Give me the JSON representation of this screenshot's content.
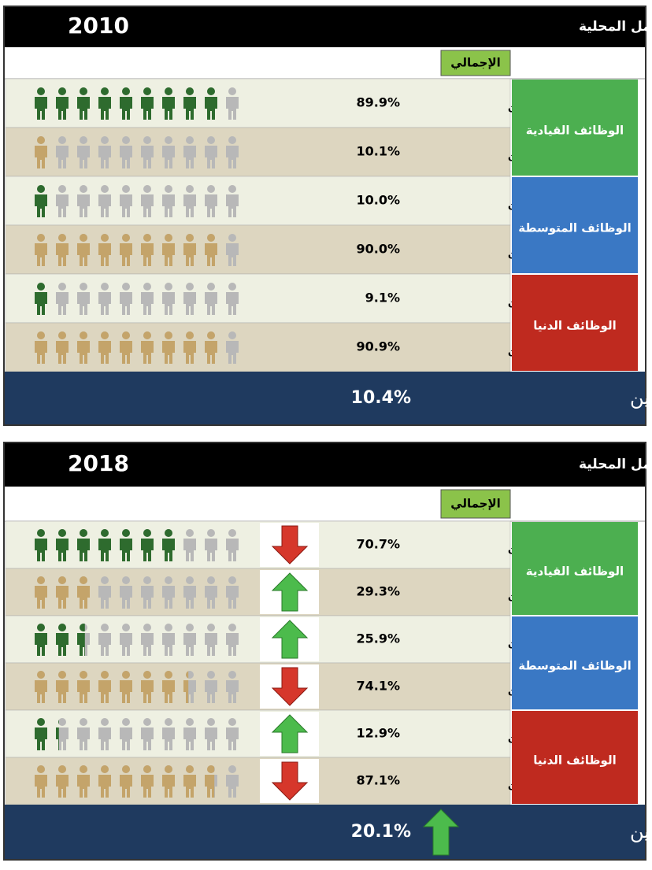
{
  "panels": [
    {
      "title": "التوزيع النسبي للعمالة السعودية والوافدة حسب الوظائف في سوق العمل المحلية",
      "year": "2010",
      "total_header": "الإجمالي",
      "groups": [
        {
          "name": "الوظائف القيادية",
          "color": "#4caf50",
          "rows": [
            {
              "label": "سعوديون",
              "value": 89.9,
              "value_label": "89.9%",
              "color": "#2e6b2e"
            },
            {
              "label": "وافدون",
              "value": 10.1,
              "value_label": "10.1%",
              "color": "#c4a46a"
            }
          ]
        },
        {
          "name": "الوظائف المتوسطة",
          "color": "#3a78c4",
          "rows": [
            {
              "label": "سعوديون",
              "value": 10.0,
              "value_label": "10.0%",
              "color": "#2e6b2e"
            },
            {
              "label": "وافدون",
              "value": 90.0,
              "value_label": "90.0%",
              "color": "#c4a46a"
            }
          ]
        },
        {
          "name": "الوظائف الدنيا",
          "color": "#bf2a1f",
          "rows": [
            {
              "label": "سعوديون",
              "value": 9.1,
              "value_label": "9.1%",
              "color": "#2e6b2e"
            },
            {
              "label": "وافدون",
              "value": 90.9,
              "value_label": "90.9%",
              "color": "#c4a46a"
            }
          ]
        }
      ],
      "rate_label": "معدل التوطين",
      "rate": {
        "value": 10.4,
        "label": "10.4%"
      }
    },
    {
      "title": "التوزيع النسبي للعمالة السعودية والوافدة حسب الوظائف في سوق العمل المحلية",
      "year": "2018",
      "total_header": "الإجمالي",
      "groups": [
        {
          "name": "الوظائف القيادية",
          "color": "#4caf50",
          "rows": [
            {
              "label": "سعوديون",
              "value": 70.7,
              "value_label": "70.7%",
              "color": "#2e6b2e",
              "trend": "down"
            },
            {
              "label": "وافدون",
              "value": 29.3,
              "value_label": "29.3%",
              "color": "#c4a46a",
              "trend": "up"
            }
          ]
        },
        {
          "name": "الوظائف المتوسطة",
          "color": "#3a78c4",
          "rows": [
            {
              "label": "سعوديون",
              "value": 25.9,
              "value_label": "25.9%",
              "color": "#2e6b2e",
              "trend": "up"
            },
            {
              "label": "وافدون",
              "value": 74.1,
              "value_label": "74.1%",
              "color": "#c4a46a",
              "trend": "down"
            }
          ]
        },
        {
          "name": "الوظائف الدنيا",
          "color": "#bf2a1f",
          "rows": [
            {
              "label": "سعوديون",
              "value": 12.9,
              "value_label": "12.9%",
              "color": "#2e6b2e",
              "trend": "up"
            },
            {
              "label": "وافدون",
              "value": 87.1,
              "value_label": "87.1%",
              "color": "#c4a46a",
              "trend": "down"
            }
          ]
        }
      ],
      "rate_label": "معدل التوطين",
      "rate": {
        "value": 20.1,
        "label": "20.1%"
      },
      "rate_trend": "up"
    }
  ]
}
